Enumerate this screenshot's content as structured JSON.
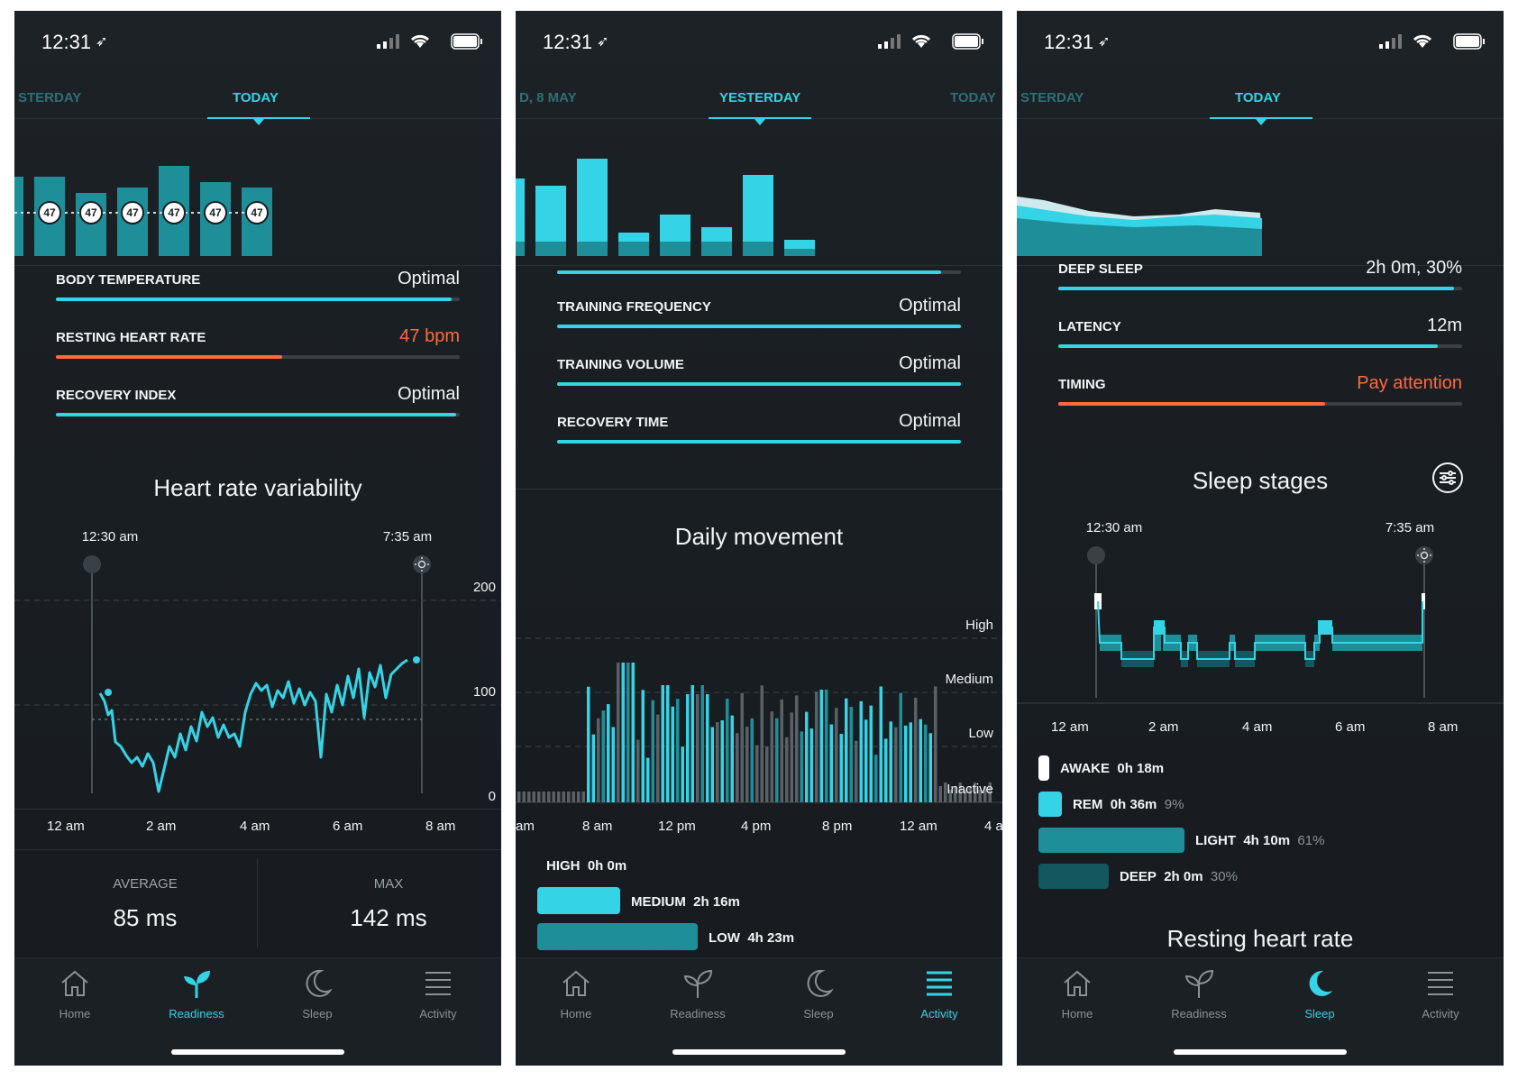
{
  "status": {
    "time": "12:31",
    "location_icon": "location-arrow-icon"
  },
  "colors": {
    "accent": "#35d3e6",
    "accent_dark": "#1e8f99",
    "warning": "#ff6a3d",
    "background": "#1a1f23"
  },
  "nav": {
    "home": "Home",
    "readiness": "Readiness",
    "sleep": "Sleep",
    "activity": "Activity"
  },
  "readiness": {
    "tabs": {
      "prev": "STERDAY",
      "current": "TODAY"
    },
    "bar_value_labels": [
      "47",
      "47",
      "47",
      "47",
      "47",
      "47"
    ],
    "metrics": [
      {
        "label": "BODY TEMPERATURE",
        "value": "Optimal",
        "fill": 0.98,
        "warn": false
      },
      {
        "label": "RESTING HEART RATE",
        "value": "47 bpm",
        "fill": 0.56,
        "warn": true
      },
      {
        "label": "RECOVERY INDEX",
        "value": "Optimal",
        "fill": 0.99,
        "warn": false
      }
    ],
    "hrv": {
      "title": "Heart rate variability",
      "start_time": "12:30 am",
      "end_time": "7:35 am",
      "y_ticks": [
        "200",
        "100",
        "0"
      ],
      "x_ticks": [
        "12 am",
        "2 am",
        "4 am",
        "6 am",
        "8 am"
      ],
      "average_label": "AVERAGE",
      "average_value": "85 ms",
      "max_label": "MAX",
      "max_value": "142 ms"
    }
  },
  "activity": {
    "tabs": {
      "prev": "D, 8 MAY",
      "current": "YESTERDAY",
      "next": "TODAY"
    },
    "metrics": [
      {
        "label": "TRAINING FREQUENCY",
        "value": "Optimal",
        "fill": 1.0,
        "warn": false
      },
      {
        "label": "TRAINING VOLUME",
        "value": "Optimal",
        "fill": 1.0,
        "warn": false
      },
      {
        "label": "RECOVERY TIME",
        "value": "Optimal",
        "fill": 1.0,
        "warn": false
      }
    ],
    "movement": {
      "title": "Daily movement",
      "levels": [
        "High",
        "Medium",
        "Low",
        "Inactive"
      ],
      "x_ticks": [
        "am",
        "8 am",
        "12 pm",
        "4 pm",
        "8 pm",
        "12 am",
        "4 a"
      ],
      "legend": [
        {
          "label": "HIGH",
          "value": "0h 0m"
        },
        {
          "label": "MEDIUM",
          "value": "2h 16m"
        },
        {
          "label": "LOW",
          "value": "4h 23m"
        }
      ]
    }
  },
  "sleep": {
    "tabs": {
      "prev": "STERDAY",
      "current": "TODAY"
    },
    "metrics": [
      {
        "label": "DEEP SLEEP",
        "value": "2h 0m, 30%",
        "fill": 0.98,
        "warn": false
      },
      {
        "label": "LATENCY",
        "value": "12m",
        "fill": 0.94,
        "warn": false
      },
      {
        "label": "TIMING",
        "value": "Pay attention",
        "fill": 0.66,
        "warn": true
      }
    ],
    "stages": {
      "title": "Sleep stages",
      "start_time": "12:30 am",
      "end_time": "7:35 am",
      "x_ticks": [
        "12 am",
        "2 am",
        "4 am",
        "6 am",
        "8 am"
      ],
      "legend": [
        {
          "label": "AWAKE",
          "value": "0h 18m",
          "pct": ""
        },
        {
          "label": "REM",
          "value": "0h 36m",
          "pct": "9%"
        },
        {
          "label": "LIGHT",
          "value": "4h 10m",
          "pct": "61%"
        },
        {
          "label": "DEEP",
          "value": "2h 0m",
          "pct": "30%"
        }
      ]
    },
    "next_section": "Resting heart rate"
  }
}
